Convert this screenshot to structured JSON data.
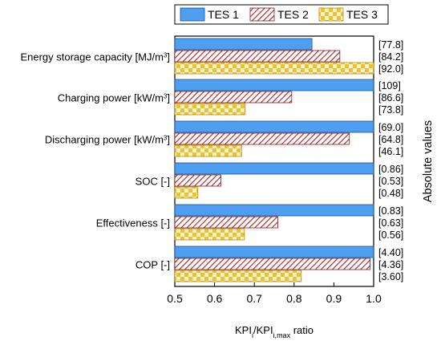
{
  "chart_data": {
    "type": "bar",
    "orientation": "horizontal",
    "categories": [
      {
        "name": "Energy storage capacity",
        "unit": "[MJ/m",
        "unit_sup": "3",
        "unit_end": "]"
      },
      {
        "name": "Charging power",
        "unit": "[kW/m",
        "unit_sup": "3",
        "unit_end": "]"
      },
      {
        "name": "Discharging power",
        "unit": "[kW/m",
        "unit_sup": "3",
        "unit_end": "]"
      },
      {
        "name": "SOC",
        "unit": "[-]",
        "unit_sup": "",
        "unit_end": ""
      },
      {
        "name": "Effectiveness",
        "unit": "[-]",
        "unit_sup": "",
        "unit_end": ""
      },
      {
        "name": "COP",
        "unit": "[-]",
        "unit_sup": "",
        "unit_end": ""
      }
    ],
    "series": [
      {
        "name": "TES 1",
        "color": "#4f9ff0",
        "values": [
          0.845,
          1.0,
          1.0,
          1.0,
          1.0,
          1.0
        ],
        "labels": [
          "[77.8]",
          "[109]",
          "[69.0]",
          "[0.86]",
          "[0.83]",
          "[4.40]"
        ]
      },
      {
        "name": "TES 2",
        "color": "#b01c1c",
        "values": [
          0.915,
          0.794,
          0.939,
          0.616,
          0.759,
          0.991
        ],
        "labels": [
          "[84.2]",
          "[86.6]",
          "[64.8]",
          "[0.53]",
          "[0.63]",
          "[4.36]"
        ]
      },
      {
        "name": "TES 3",
        "color": "#e8c23a",
        "values": [
          1.0,
          0.677,
          0.668,
          0.558,
          0.675,
          0.818
        ],
        "labels": [
          "[92.0]",
          "[73.8]",
          "[46.1]",
          "[0.48]",
          "[0.56]",
          "[3.60]"
        ]
      }
    ],
    "xlim": [
      0.5,
      1.0
    ],
    "xticks": [
      "0.5",
      "0.6",
      "0.7",
      "0.8",
      "0.9",
      "1.0"
    ],
    "xlabel": {
      "base": "KPI",
      "sub1": "i",
      "mid": "/KPI",
      "sub2": "i,max",
      "end": " ratio"
    },
    "right_label": "Absolute values",
    "legend_position": "top"
  }
}
